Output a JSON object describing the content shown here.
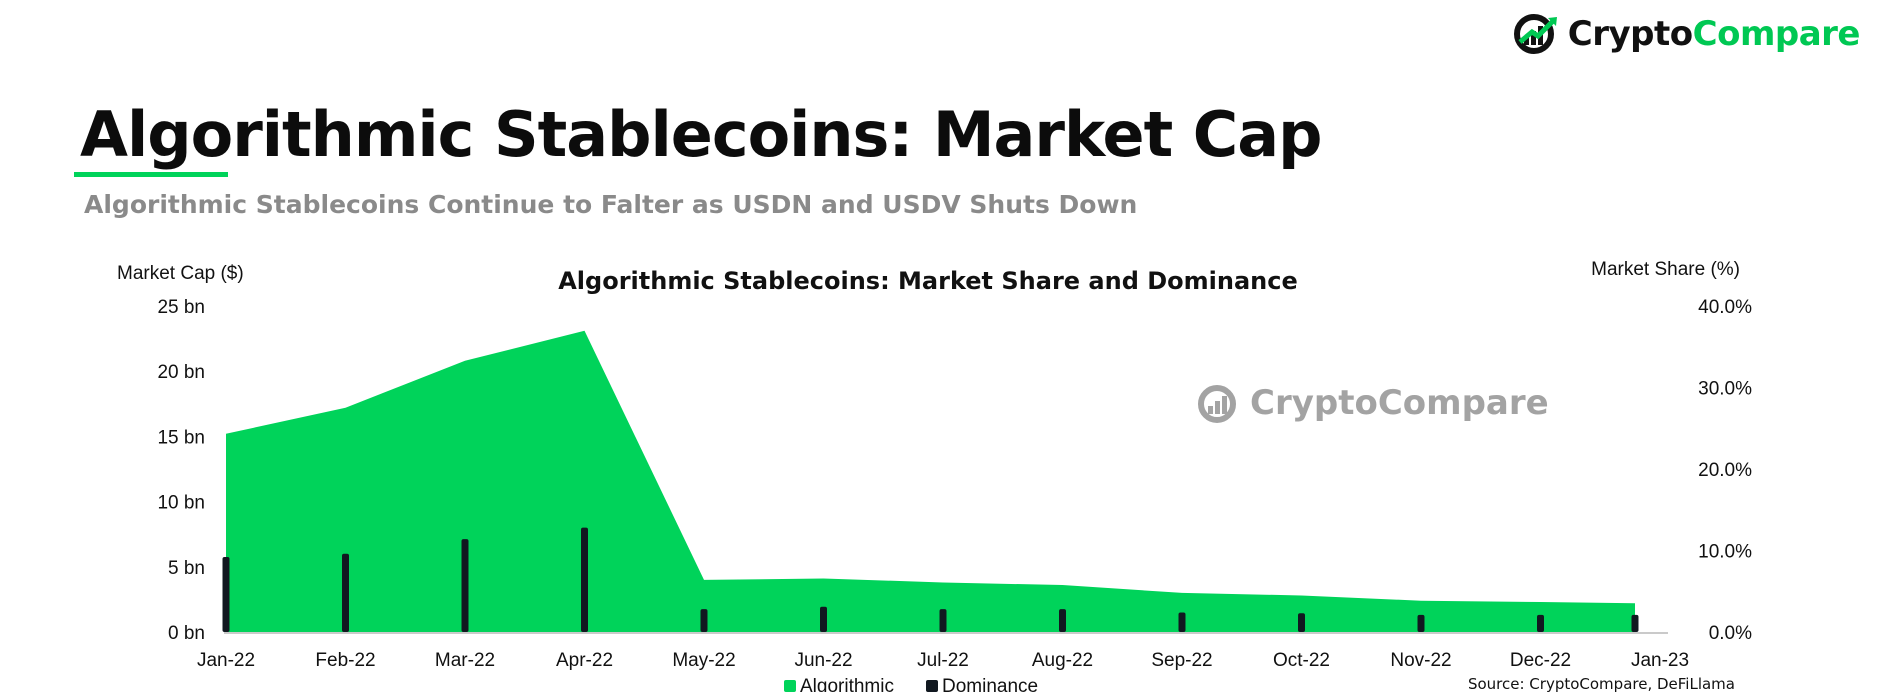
{
  "brand": {
    "name_part1": "Crypto",
    "name_part2": "Compare",
    "accent": "#00c853"
  },
  "header": {
    "title": "Algorithmic Stablecoins: Market Cap",
    "subtitle": "Algorithmic Stablecoins Continue to Falter as USDN and USDV Shuts Down"
  },
  "watermark": {
    "text": "CryptoCompare"
  },
  "source": "Source: CryptoCompare, DeFiLlama",
  "chart_data": {
    "type": "area",
    "title": "Algorithmic Stablecoins: Market Share and Dominance",
    "ylabel_left": "Market Cap ($)",
    "ylabel_right": "Market Share (%)",
    "x": [
      "Jan-22",
      "Feb-22",
      "Mar-22",
      "Apr-22",
      "May-22",
      "Jun-22",
      "Jul-22",
      "Aug-22",
      "Sep-22",
      "Oct-22",
      "Nov-22",
      "Dec-22",
      "Jan-23"
    ],
    "ylim_left": [
      0,
      25
    ],
    "ylim_right": [
      0,
      40
    ],
    "yticks_left": [
      "0 bn",
      "5 bn",
      "10 bn",
      "15 bn",
      "20 bn",
      "25 bn"
    ],
    "yticks_right": [
      "0.0%",
      "10.0%",
      "20.0%",
      "30.0%",
      "40.0%"
    ],
    "series": [
      {
        "name": "Algorithmic",
        "type": "area",
        "axis": "left",
        "color": "#00d35a",
        "values": [
          15.2,
          17.2,
          20.8,
          23.1,
          4.0,
          4.1,
          3.8,
          3.6,
          3.0,
          2.8,
          2.4,
          2.3,
          2.2
        ]
      },
      {
        "name": "Dominance",
        "type": "bar",
        "axis": "right",
        "color": "#111820",
        "values": [
          9.2,
          9.6,
          11.4,
          12.8,
          2.8,
          3.1,
          2.8,
          2.8,
          2.4,
          2.3,
          2.1,
          2.1,
          2.1
        ]
      }
    ],
    "legend_position": "bottom-center",
    "grid": false
  }
}
